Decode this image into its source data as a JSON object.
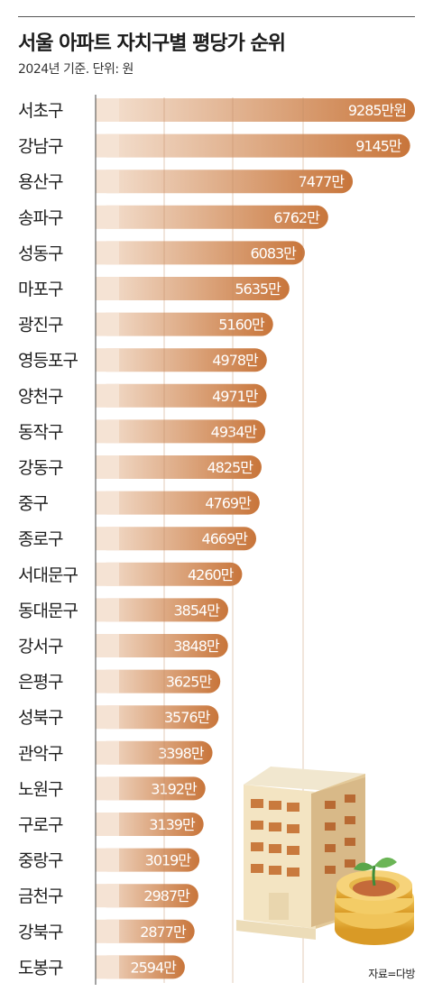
{
  "title": "서울 아파트 자치구별 평당가 순위",
  "subtitle": "2024년 기준. 단위: 원",
  "source": "자료=다방",
  "colors": {
    "bar_start": "#f5e3d4",
    "bar_end": "#c8753a",
    "grid": "#c08a63"
  },
  "icons": [
    "building-icon",
    "coin-stack-icon",
    "sprout-icon"
  ],
  "chart_data": {
    "type": "bar",
    "orientation": "horizontal",
    "unit": "만원",
    "categories": [
      "서초구",
      "강남구",
      "용산구",
      "송파구",
      "성동구",
      "마포구",
      "광진구",
      "영등포구",
      "양천구",
      "동작구",
      "강동구",
      "중구",
      "종로구",
      "서대문구",
      "동대문구",
      "강서구",
      "은평구",
      "성북구",
      "관악구",
      "노원구",
      "구로구",
      "중랑구",
      "금천구",
      "강북구",
      "도봉구"
    ],
    "values": [
      9285,
      9145,
      7477,
      6762,
      6083,
      5635,
      5160,
      4978,
      4971,
      4934,
      4825,
      4769,
      4669,
      4260,
      3854,
      3848,
      3625,
      3576,
      3398,
      3192,
      3139,
      3019,
      2987,
      2877,
      2594
    ],
    "value_labels": [
      "9285만원",
      "9145만",
      "7477만",
      "6762만",
      "6083만",
      "5635만",
      "5160만",
      "4978만",
      "4971만",
      "4934만",
      "4825만",
      "4769만",
      "4669만",
      "4260만",
      "3854만",
      "3848만",
      "3625만",
      "3576만",
      "3398만",
      "3192만",
      "3139만",
      "3019만",
      "2987만",
      "2877만",
      "2594만"
    ],
    "xlim": [
      0,
      9285
    ],
    "grid": true
  }
}
